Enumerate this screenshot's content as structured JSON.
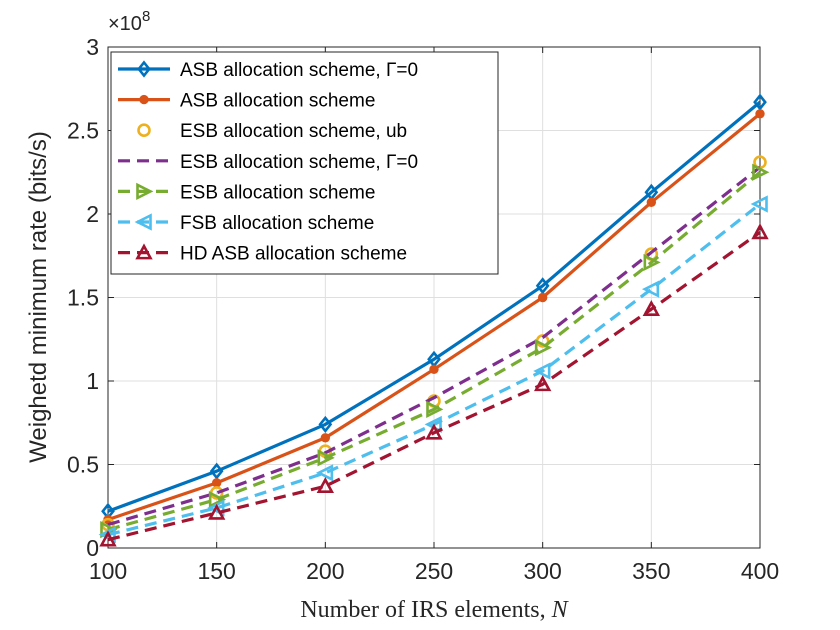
{
  "chart_data": {
    "type": "line",
    "title": "",
    "xlabel_text": "Number of IRS elements, ",
    "xlabel_var": "N",
    "ylabel": "Weighetd minimum rate (bits/s)",
    "exponent_base": "×10",
    "exponent_power": "8",
    "xlim": [
      100,
      400
    ],
    "ylim": [
      0,
      3
    ],
    "xticks": [
      100,
      150,
      200,
      250,
      300,
      350,
      400
    ],
    "yticks": [
      0,
      0.5,
      1,
      1.5,
      2,
      2.5,
      3
    ],
    "ytick_labels": [
      "0",
      "0.5",
      "1",
      "1.5",
      "2",
      "2.5",
      "3"
    ],
    "grid": true,
    "legend_position": "top-left",
    "x": [
      100,
      150,
      200,
      250,
      300,
      350,
      400
    ],
    "series": [
      {
        "name": "ASB allocation scheme, Γ=0",
        "values": [
          0.22,
          0.46,
          0.74,
          1.13,
          1.57,
          2.13,
          2.67
        ],
        "color": "#0072BD",
        "line": "solid",
        "marker": "diamond"
      },
      {
        "name": "ASB allocation scheme",
        "values": [
          0.17,
          0.39,
          0.66,
          1.07,
          1.5,
          2.07,
          2.6
        ],
        "color": "#D95319",
        "line": "solid",
        "marker": "dot"
      },
      {
        "name": "ESB allocation scheme, ub",
        "values": [
          0.14,
          0.33,
          0.58,
          0.88,
          1.24,
          1.76,
          2.31
        ],
        "color": "#EDB120",
        "line": "none",
        "marker": "circle"
      },
      {
        "name": "ESB allocation scheme, Γ=0",
        "values": [
          0.14,
          0.33,
          0.57,
          0.9,
          1.26,
          1.77,
          2.28
        ],
        "color": "#7E2F8E",
        "line": "dashed",
        "marker": "none"
      },
      {
        "name": "ESB allocation scheme",
        "values": [
          0.11,
          0.29,
          0.54,
          0.83,
          1.2,
          1.71,
          2.25
        ],
        "color": "#77AC30",
        "line": "dashed",
        "marker": "triangle-right"
      },
      {
        "name": "FSB allocation scheme",
        "values": [
          0.08,
          0.24,
          0.45,
          0.74,
          1.06,
          1.55,
          2.06
        ],
        "color": "#4DBEEE",
        "line": "dashed",
        "marker": "triangle-left"
      },
      {
        "name": "HD ASB allocation scheme",
        "values": [
          0.05,
          0.21,
          0.37,
          0.69,
          0.98,
          1.43,
          1.89
        ],
        "color": "#A2142F",
        "line": "dashed",
        "marker": "triangle-up"
      }
    ]
  }
}
